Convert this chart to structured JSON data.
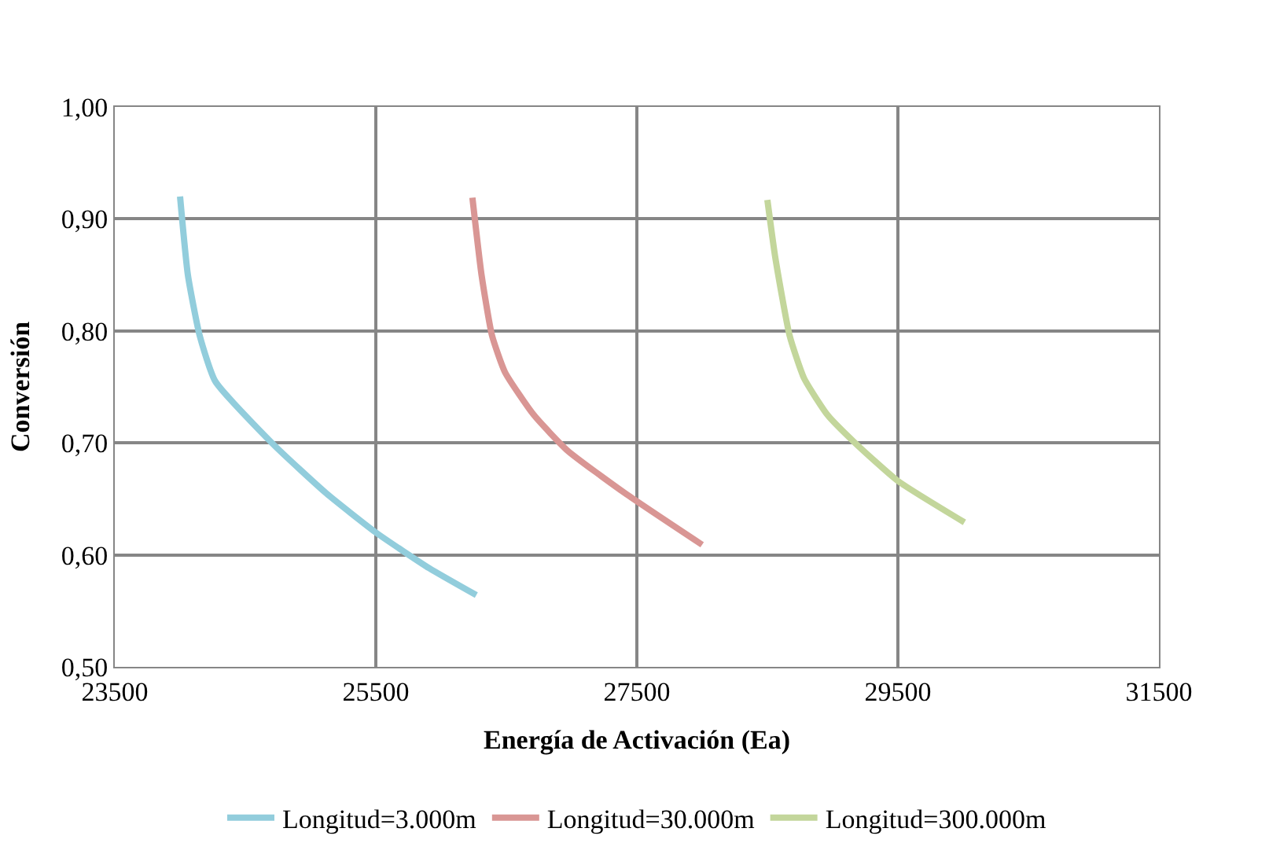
{
  "chart_data": {
    "type": "line",
    "xlabel": "Energía de Activación (Ea)",
    "ylabel": "Conversión",
    "xlim": [
      23500,
      31500
    ],
    "xticks": [
      23500,
      25500,
      27500,
      29500,
      31500
    ],
    "ylim": [
      0.5,
      1.0
    ],
    "yticks": [
      {
        "value": 0.5,
        "label": "0,50"
      },
      {
        "value": 0.6,
        "label": "0,60"
      },
      {
        "value": 0.7,
        "label": "0,70"
      },
      {
        "value": 0.8,
        "label": "0,80"
      },
      {
        "value": 0.9,
        "label": "0,90"
      },
      {
        "value": 1.0,
        "label": "1,00"
      }
    ],
    "grid": true,
    "legend": "bottom",
    "marker": "none",
    "line_style": "solid",
    "series": [
      {
        "name": "Longitud=3.000m",
        "color": "#92cddc",
        "x": [
          24000,
          24060,
          24150,
          24270,
          24720,
          25120,
          25500,
          25910,
          26270
        ],
        "values": [
          0.92,
          0.85,
          0.796,
          0.755,
          0.698,
          0.655,
          0.62,
          0.588,
          0.564
        ]
      },
      {
        "name": "Longitud=30.000m",
        "color": "#d99694",
        "x": [
          26240,
          26310,
          26390,
          26490,
          26710,
          26970,
          27410,
          28000
        ],
        "values": [
          0.919,
          0.85,
          0.796,
          0.763,
          0.725,
          0.693,
          0.655,
          0.609
        ]
      },
      {
        "name": "Longitud=300.000m",
        "color": "#c3d69b",
        "x": [
          28500,
          28560,
          28670,
          28780,
          28960,
          29180,
          29500,
          30010
        ],
        "values": [
          0.917,
          0.866,
          0.796,
          0.758,
          0.725,
          0.699,
          0.666,
          0.629
        ]
      }
    ]
  }
}
